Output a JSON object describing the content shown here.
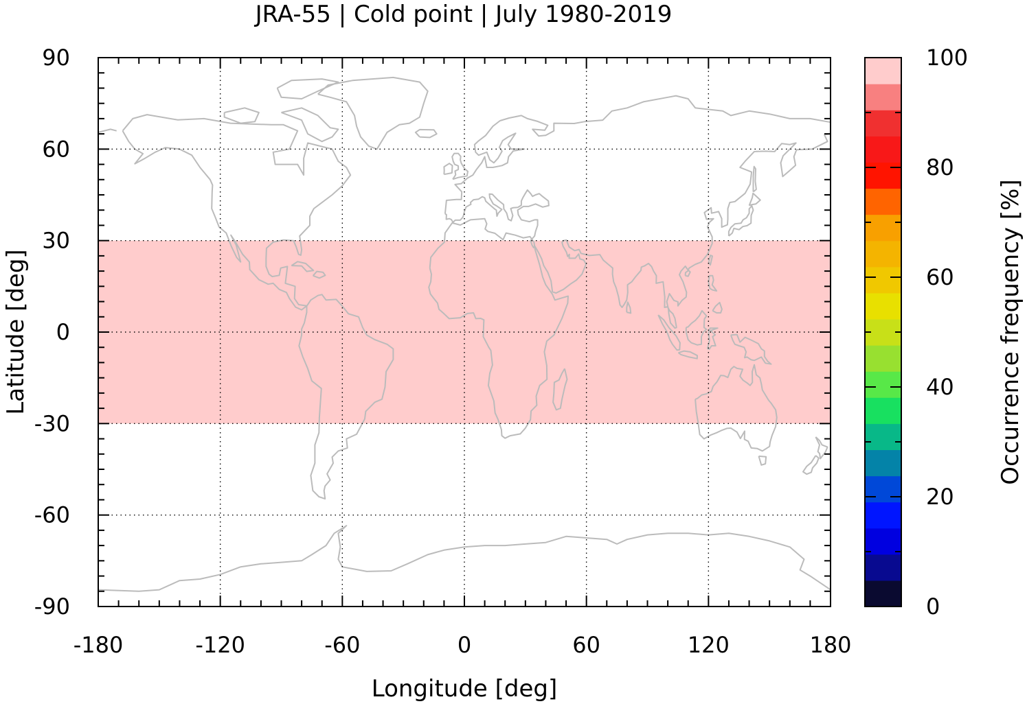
{
  "chart_data": {
    "type": "heatmap",
    "title": "JRA-55 | Cold point | July 1980-2019",
    "xlabel": "Longitude [deg]",
    "ylabel": "Latitude [deg]",
    "xlim": [
      -180,
      180
    ],
    "ylim": [
      -90,
      90
    ],
    "x_ticks": [
      -180,
      -120,
      -60,
      0,
      60,
      120,
      180
    ],
    "y_ticks": [
      90,
      60,
      30,
      0,
      -30,
      -60,
      -90
    ],
    "x_tick_labels": [
      "-180",
      "-120",
      "-60",
      "0",
      "60",
      "120",
      "180"
    ],
    "y_tick_labels": [
      "90",
      "60",
      "30",
      "0",
      "-30",
      "-60",
      "-90"
    ],
    "gridlines": "dotted",
    "coastlines": true,
    "coastline_color": "#bbbbbb",
    "regions": [
      {
        "lon": [
          -180,
          180
        ],
        "lat": [
          -30,
          30
        ],
        "value": 100
      },
      {
        "lon": [
          -180,
          180
        ],
        "lat": [
          30,
          90
        ],
        "value": 0,
        "masked": true
      },
      {
        "lon": [
          -180,
          180
        ],
        "lat": [
          -90,
          -30
        ],
        "value": 0,
        "masked": true
      }
    ],
    "colorbar": {
      "label": "Occurrence frequency [%]",
      "range": [
        0,
        100
      ],
      "ticks": [
        0,
        20,
        40,
        60,
        80,
        100
      ],
      "tick_labels": [
        "0",
        "20",
        "40",
        "60",
        "80",
        "100"
      ],
      "colors": [
        "#0a0a30",
        "#080a90",
        "#0000e0",
        "#0015ff",
        "#0048d8",
        "#0483a8",
        "#08b888",
        "#18e060",
        "#58e848",
        "#98e030",
        "#c8e018",
        "#e8e000",
        "#f0c800",
        "#f4b400",
        "#f8a000",
        "#ff6400",
        "#ff1400",
        "#f81818",
        "#f03030",
        "#f88080",
        "#ffcccc"
      ]
    }
  }
}
